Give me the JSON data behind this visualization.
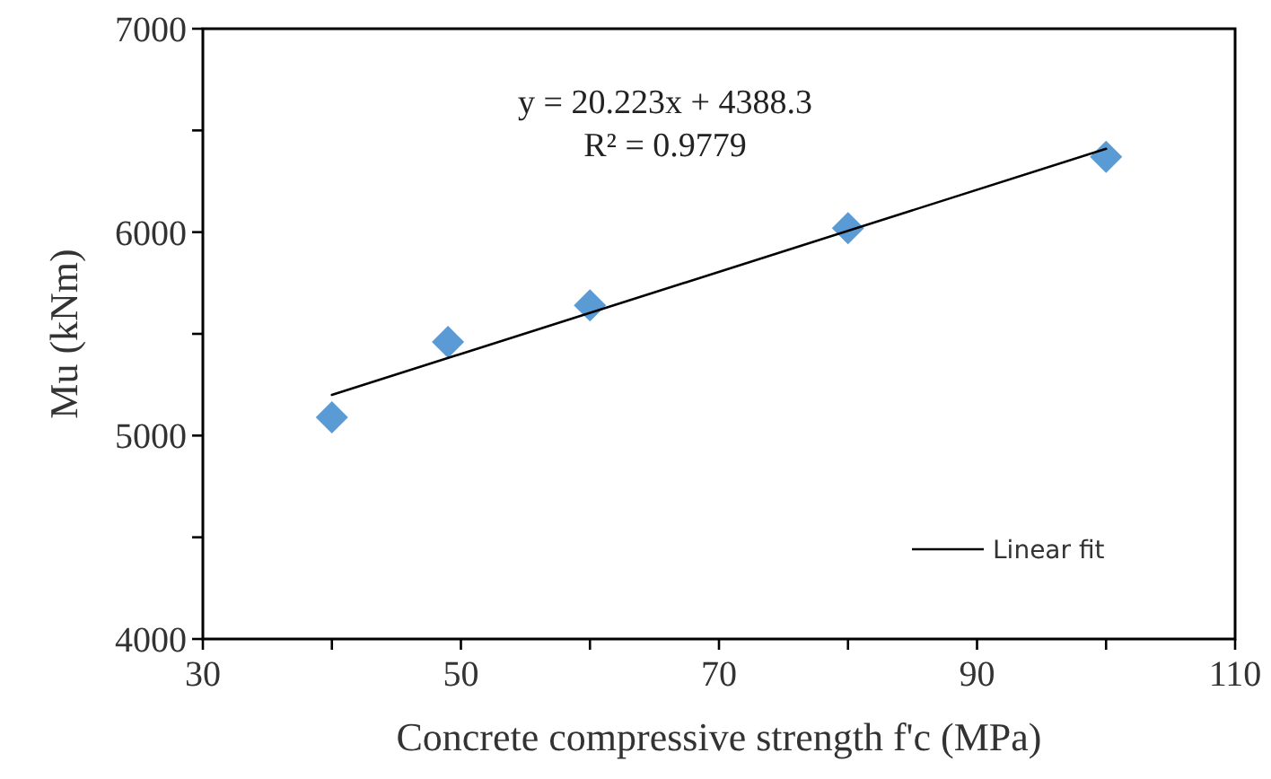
{
  "chart_data": {
    "type": "scatter",
    "xlabel": "Concrete compressive strength f'c (MPa)",
    "ylabel": "Mu (kNm)",
    "xlim": [
      30,
      110
    ],
    "xticks": [
      30,
      50,
      70,
      90,
      110,
      {
        "value": 40,
        "label": null
      },
      {
        "value": 60,
        "label": null
      },
      {
        "value": 80,
        "label": null
      },
      {
        "value": 100,
        "label": null
      }
    ],
    "ylim": [
      4000,
      7000
    ],
    "yticks": [
      4000,
      5000,
      6000,
      7000,
      {
        "value": 4500,
        "label": null
      },
      {
        "value": 5500,
        "label": null
      },
      {
        "value": 6500,
        "label": null
      }
    ],
    "x": [
      40,
      49,
      60,
      80,
      100
    ],
    "marker": "diamond",
    "legend": "bottom right",
    "grid": false,
    "series": [
      {
        "color": "#5b9bd5",
        "values": [
          5090,
          5460,
          5640,
          6020,
          6370
        ]
      },
      {
        "type": "line",
        "name": "Linear fit",
        "color": "#000000",
        "x": [
          40,
          100
        ],
        "values": [
          5200,
          6410
        ],
        "marker": "none",
        "line_style": "solid"
      }
    ],
    "annotations": [
      "y = 20.223x + 4388.3",
      "R² = 0.9779"
    ]
  }
}
